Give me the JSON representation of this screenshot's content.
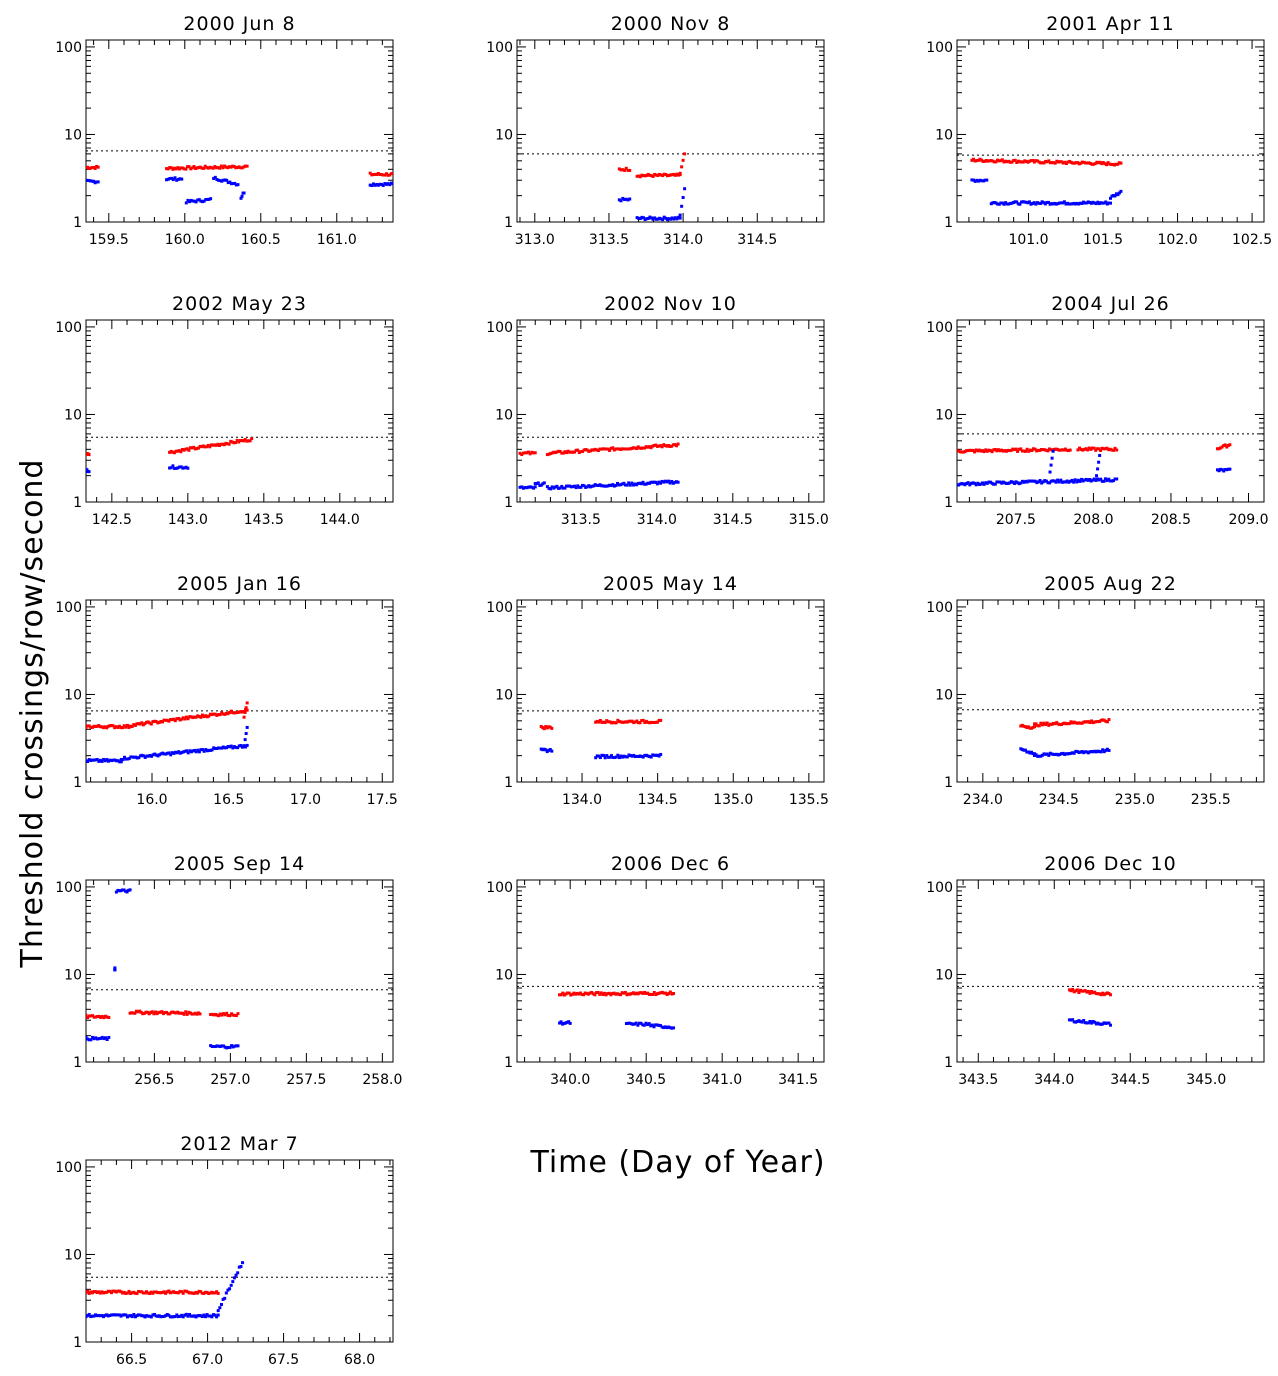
{
  "figure": {
    "xlabel": "Time (Day of Year)",
    "ylabel": "Threshold crossings/row/second",
    "colors": {
      "red": "#ff0000",
      "blue": "#0000ff",
      "axis": "#000000"
    }
  },
  "chart_data": [
    {
      "type": "scatter",
      "title": "2000 Jun 8",
      "ylog": true,
      "ylim": [
        1,
        120
      ],
      "xlim": [
        159.35,
        161.37
      ],
      "xticks": [
        159.5,
        160.0,
        160.5,
        161.0
      ],
      "yticks": [
        1,
        10,
        100
      ],
      "threshold": 6.5,
      "series": [
        {
          "color": "red",
          "segments": [
            {
              "x": [
                159.35,
                159.43
              ],
              "y": [
                4.2,
                4.2
              ]
            },
            {
              "x": [
                159.88,
                160.41
              ],
              "y": [
                4.1,
                4.3
              ]
            },
            {
              "x": [
                161.22,
                161.37
              ],
              "y": [
                3.5,
                3.5
              ]
            }
          ]
        },
        {
          "color": "blue",
          "segments": [
            {
              "x": [
                159.35,
                159.43
              ],
              "y": [
                2.9,
                2.9
              ]
            },
            {
              "x": [
                159.88,
                159.98
              ],
              "y": [
                3.1,
                3.1
              ]
            },
            {
              "x": [
                160.01,
                160.17
              ],
              "y": [
                1.7,
                1.8
              ]
            },
            {
              "x": [
                160.19,
                160.35
              ],
              "y": [
                3.2,
                2.7
              ]
            },
            {
              "x": [
                160.37,
                160.39
              ],
              "y": [
                1.9,
                2.2
              ]
            },
            {
              "x": [
                161.22,
                161.37
              ],
              "y": [
                2.7,
                2.7
              ]
            }
          ]
        }
      ]
    },
    {
      "type": "scatter",
      "title": "2000 Nov 8",
      "ylog": true,
      "ylim": [
        1,
        120
      ],
      "xlim": [
        312.88,
        314.95
      ],
      "xticks": [
        313.0,
        313.5,
        314.0,
        314.5
      ],
      "yticks": [
        1,
        10,
        100
      ],
      "threshold": 6.0,
      "series": [
        {
          "color": "red",
          "segments": [
            {
              "x": [
                313.57,
                313.64
              ],
              "y": [
                4.0,
                4.0
              ]
            },
            {
              "x": [
                313.69,
                313.98
              ],
              "y": [
                3.4,
                3.4
              ]
            },
            {
              "x": [
                313.98,
                314.01
              ],
              "y": [
                3.6,
                6.0
              ]
            }
          ]
        },
        {
          "color": "blue",
          "segments": [
            {
              "x": [
                313.57,
                313.64
              ],
              "y": [
                1.8,
                1.8
              ]
            },
            {
              "x": [
                313.69,
                313.98
              ],
              "y": [
                1.1,
                1.1
              ]
            },
            {
              "x": [
                313.98,
                314.01
              ],
              "y": [
                1.2,
                2.4
              ]
            }
          ]
        }
      ]
    },
    {
      "type": "scatter",
      "title": "2001 Apr 11",
      "ylog": true,
      "ylim": [
        1,
        120
      ],
      "xlim": [
        100.52,
        102.58
      ],
      "xticks": [
        101.0,
        101.5,
        102.0,
        102.5
      ],
      "yticks": [
        1,
        10,
        100
      ],
      "threshold": 5.8,
      "series": [
        {
          "color": "red",
          "segments": [
            {
              "x": [
                100.62,
                101.62
              ],
              "y": [
                5.1,
                4.6
              ]
            }
          ]
        },
        {
          "color": "blue",
          "segments": [
            {
              "x": [
                100.62,
                100.72
              ],
              "y": [
                3.0,
                3.0
              ]
            },
            {
              "x": [
                100.75,
                101.55
              ],
              "y": [
                1.65,
                1.65
              ]
            },
            {
              "x": [
                101.55,
                101.62
              ],
              "y": [
                1.9,
                2.2
              ]
            }
          ]
        }
      ]
    },
    {
      "type": "scatter",
      "title": "2002 May 23",
      "ylog": true,
      "ylim": [
        1,
        120
      ],
      "xlim": [
        142.33,
        144.35
      ],
      "xticks": [
        142.5,
        143.0,
        143.5,
        144.0
      ],
      "yticks": [
        1,
        10,
        100
      ],
      "threshold": 5.5,
      "series": [
        {
          "color": "red",
          "segments": [
            {
              "x": [
                142.33,
                142.35
              ],
              "y": [
                3.6,
                3.6
              ]
            },
            {
              "x": [
                142.88,
                143.42
              ],
              "y": [
                3.7,
                5.2
              ]
            }
          ]
        },
        {
          "color": "blue",
          "segments": [
            {
              "x": [
                142.33,
                142.35
              ],
              "y": [
                2.3,
                2.3
              ]
            },
            {
              "x": [
                142.88,
                143.0
              ],
              "y": [
                2.5,
                2.5
              ]
            }
          ]
        }
      ]
    },
    {
      "type": "scatter",
      "title": "2002 Nov 10",
      "ylog": true,
      "ylim": [
        1,
        120
      ],
      "xlim": [
        313.08,
        315.1
      ],
      "xticks": [
        313.5,
        314.0,
        314.5,
        315.0
      ],
      "yticks": [
        1,
        10,
        100
      ],
      "threshold": 5.5,
      "series": [
        {
          "color": "red",
          "segments": [
            {
              "x": [
                313.1,
                313.2
              ],
              "y": [
                3.6,
                3.6
              ]
            },
            {
              "x": [
                313.28,
                314.14
              ],
              "y": [
                3.6,
                4.5
              ]
            }
          ]
        },
        {
          "color": "blue",
          "segments": [
            {
              "x": [
                313.1,
                313.2
              ],
              "y": [
                1.45,
                1.45
              ]
            },
            {
              "x": [
                313.2,
                313.26
              ],
              "y": [
                1.6,
                1.6
              ]
            },
            {
              "x": [
                313.28,
                314.14
              ],
              "y": [
                1.45,
                1.7
              ]
            }
          ]
        }
      ]
    },
    {
      "type": "scatter",
      "title": "2004 Jul 26",
      "ylog": true,
      "ylim": [
        1,
        120
      ],
      "xlim": [
        207.12,
        209.1
      ],
      "xticks": [
        207.5,
        208.0,
        208.5,
        209.0
      ],
      "yticks": [
        1,
        10,
        100
      ],
      "threshold": 6.0,
      "series": [
        {
          "color": "red",
          "segments": [
            {
              "x": [
                207.12,
                207.85
              ],
              "y": [
                3.8,
                4.0
              ]
            },
            {
              "x": [
                207.9,
                208.15
              ],
              "y": [
                4.0,
                4.0
              ]
            },
            {
              "x": [
                208.8,
                208.88
              ],
              "y": [
                4.1,
                4.5
              ]
            }
          ]
        },
        {
          "color": "blue",
          "segments": [
            {
              "x": [
                207.12,
                208.15
              ],
              "y": [
                1.6,
                1.8
              ]
            },
            {
              "x": [
                207.72,
                207.74
              ],
              "y": [
                2.2,
                3.8
              ]
            },
            {
              "x": [
                208.02,
                208.04
              ],
              "y": [
                2.0,
                3.4
              ]
            },
            {
              "x": [
                208.8,
                208.88
              ],
              "y": [
                2.3,
                2.3
              ]
            }
          ]
        }
      ]
    },
    {
      "type": "scatter",
      "title": "2005 Jan 16",
      "ylog": true,
      "ylim": [
        1,
        120
      ],
      "xlim": [
        15.57,
        17.57
      ],
      "xticks": [
        16.0,
        16.5,
        17.0,
        17.5
      ],
      "yticks": [
        1,
        10,
        100
      ],
      "threshold": 6.5,
      "series": [
        {
          "color": "red",
          "segments": [
            {
              "x": [
                15.57,
                15.85
              ],
              "y": [
                4.3,
                4.3
              ]
            },
            {
              "x": [
                15.85,
                16.62
              ],
              "y": [
                4.4,
                6.6
              ]
            },
            {
              "x": [
                16.6,
                16.62
              ],
              "y": [
                5.5,
                8.0
              ]
            }
          ]
        },
        {
          "color": "blue",
          "segments": [
            {
              "x": [
                15.57,
                15.8
              ],
              "y": [
                1.75,
                1.75
              ]
            },
            {
              "x": [
                15.8,
                16.62
              ],
              "y": [
                1.85,
                2.6
              ]
            },
            {
              "x": [
                16.6,
                16.62
              ],
              "y": [
                2.6,
                4.2
              ]
            }
          ]
        }
      ]
    },
    {
      "type": "scatter",
      "title": "2005 May 14",
      "ylog": true,
      "ylim": [
        1,
        120
      ],
      "xlim": [
        133.57,
        135.6
      ],
      "xticks": [
        134.0,
        134.5,
        135.0,
        135.5
      ],
      "yticks": [
        1,
        10,
        100
      ],
      "threshold": 6.5,
      "series": [
        {
          "color": "red",
          "segments": [
            {
              "x": [
                133.73,
                133.8
              ],
              "y": [
                4.2,
                4.2
              ]
            },
            {
              "x": [
                134.09,
                134.52
              ],
              "y": [
                4.9,
                4.9
              ]
            }
          ]
        },
        {
          "color": "blue",
          "segments": [
            {
              "x": [
                133.73,
                133.8
              ],
              "y": [
                2.3,
                2.3
              ]
            },
            {
              "x": [
                134.09,
                134.52
              ],
              "y": [
                1.95,
                2.0
              ]
            }
          ]
        }
      ]
    },
    {
      "type": "scatter",
      "title": "2005 Aug 22",
      "ylog": true,
      "ylim": [
        1,
        120
      ],
      "xlim": [
        233.83,
        235.85
      ],
      "xticks": [
        234.0,
        234.5,
        235.0,
        235.5
      ],
      "yticks": [
        1,
        10,
        100
      ],
      "threshold": 6.7,
      "series": [
        {
          "color": "red",
          "segments": [
            {
              "x": [
                234.25,
                234.34
              ],
              "y": [
                4.4,
                4.2
              ]
            },
            {
              "x": [
                234.34,
                234.83
              ],
              "y": [
                4.5,
                5.0
              ]
            }
          ]
        },
        {
          "color": "blue",
          "segments": [
            {
              "x": [
                234.25,
                234.34
              ],
              "y": [
                2.4,
                2.1
              ]
            },
            {
              "x": [
                234.34,
                234.83
              ],
              "y": [
                2.0,
                2.3
              ]
            }
          ]
        }
      ]
    },
    {
      "type": "scatter",
      "title": "2005 Sep 14",
      "ylog": true,
      "ylim": [
        1,
        120
      ],
      "xlim": [
        256.05,
        258.07
      ],
      "xticks": [
        256.5,
        257.0,
        257.5,
        258.0
      ],
      "yticks": [
        1,
        10,
        100
      ],
      "threshold": 6.7,
      "series": [
        {
          "color": "red",
          "segments": [
            {
              "x": [
                256.05,
                256.2
              ],
              "y": [
                3.3,
                3.3
              ]
            },
            {
              "x": [
                256.34,
                256.8
              ],
              "y": [
                3.7,
                3.6
              ]
            },
            {
              "x": [
                256.87,
                257.05
              ],
              "y": [
                3.5,
                3.5
              ]
            }
          ]
        },
        {
          "color": "blue",
          "segments": [
            {
              "x": [
                256.05,
                256.2
              ],
              "y": [
                1.85,
                1.85
              ]
            },
            {
              "x": [
                256.24,
                256.24
              ],
              "y": [
                11.5,
                11.5
              ]
            },
            {
              "x": [
                256.25,
                256.34
              ],
              "y": [
                90.0,
                90.0
              ]
            },
            {
              "x": [
                256.87,
                257.05
              ],
              "y": [
                1.5,
                1.5
              ]
            }
          ]
        }
      ]
    },
    {
      "type": "scatter",
      "title": "2006 Dec 6",
      "ylog": true,
      "ylim": [
        1,
        120
      ],
      "xlim": [
        339.65,
        341.67
      ],
      "xticks": [
        340.0,
        340.5,
        341.0,
        341.5
      ],
      "yticks": [
        1,
        10,
        100
      ],
      "threshold": 7.3,
      "series": [
        {
          "color": "red",
          "segments": [
            {
              "x": [
                339.93,
                340.68
              ],
              "y": [
                6.0,
                6.1
              ]
            }
          ]
        },
        {
          "color": "blue",
          "segments": [
            {
              "x": [
                339.93,
                340.0
              ],
              "y": [
                2.8,
                2.8
              ]
            },
            {
              "x": [
                340.37,
                340.52
              ],
              "y": [
                2.7,
                2.7
              ]
            },
            {
              "x": [
                340.53,
                340.68
              ],
              "y": [
                2.6,
                2.5
              ]
            }
          ]
        }
      ]
    },
    {
      "type": "scatter",
      "title": "2006 Dec 10",
      "ylog": true,
      "ylim": [
        1,
        120
      ],
      "xlim": [
        343.36,
        345.38
      ],
      "xticks": [
        343.5,
        344.0,
        344.5,
        345.0
      ],
      "yticks": [
        1,
        10,
        100
      ],
      "threshold": 7.3,
      "series": [
        {
          "color": "red",
          "segments": [
            {
              "x": [
                344.1,
                344.37
              ],
              "y": [
                6.6,
                5.9
              ]
            }
          ]
        },
        {
          "color": "blue",
          "segments": [
            {
              "x": [
                344.1,
                344.37
              ],
              "y": [
                3.0,
                2.7
              ]
            }
          ]
        }
      ]
    },
    {
      "type": "scatter",
      "title": "2012 Mar 7",
      "ylog": true,
      "ylim": [
        1,
        120
      ],
      "xlim": [
        66.2,
        68.22
      ],
      "xticks": [
        66.5,
        67.0,
        67.5,
        68.0
      ],
      "yticks": [
        1,
        10,
        100
      ],
      "threshold": 5.5,
      "series": [
        {
          "color": "red",
          "segments": [
            {
              "x": [
                66.2,
                67.07
              ],
              "y": [
                3.7,
                3.7
              ]
            }
          ]
        },
        {
          "color": "blue",
          "segments": [
            {
              "x": [
                66.2,
                67.07
              ],
              "y": [
                2.0,
                2.0
              ]
            },
            {
              "x": [
                67.07,
                67.23
              ],
              "y": [
                2.3,
                8.2
              ]
            }
          ]
        }
      ]
    }
  ]
}
